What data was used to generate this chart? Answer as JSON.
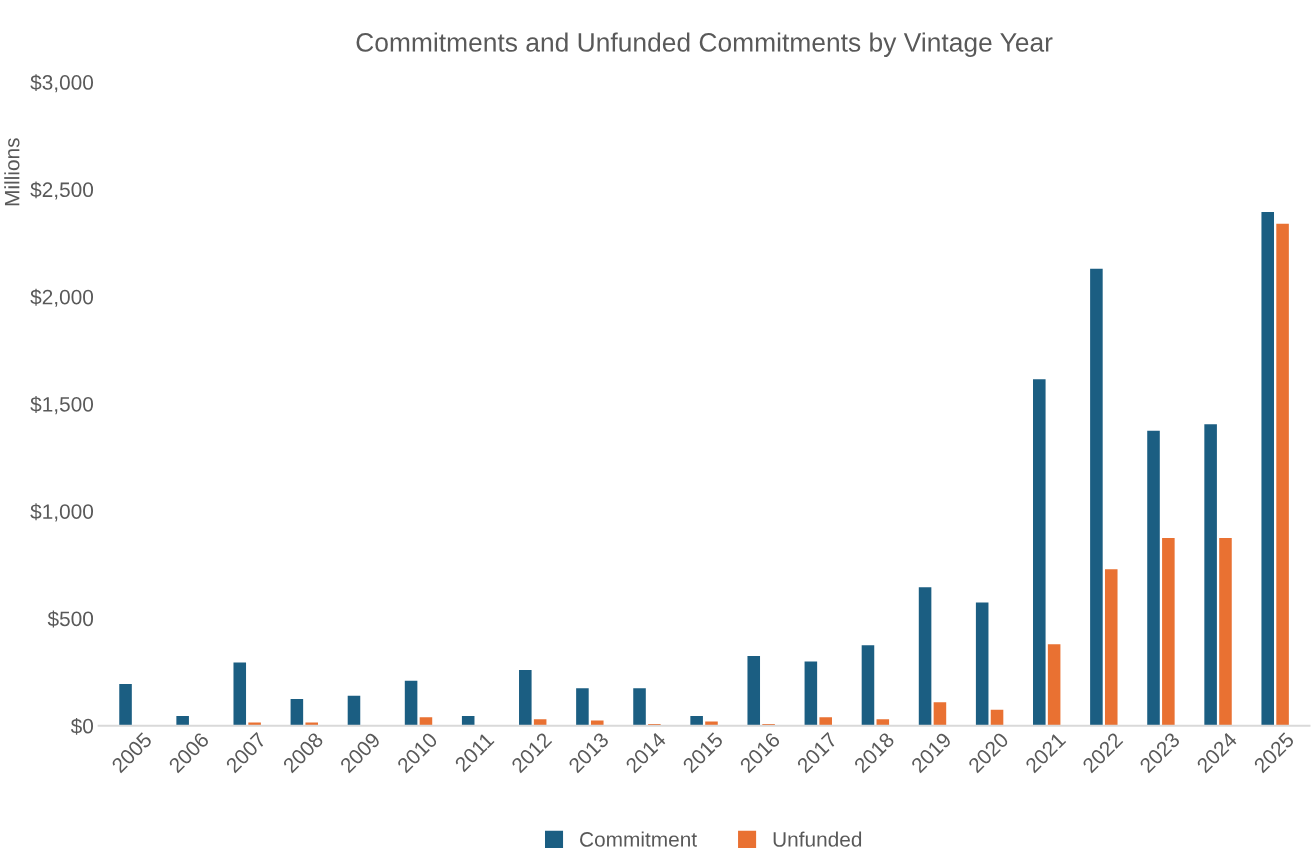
{
  "chart_data": {
    "type": "bar",
    "title": "Commitments and Unfunded Commitments by Vintage Year",
    "ylabel": "Millions",
    "categories": [
      "2005",
      "2006",
      "2007",
      "2008",
      "2009",
      "2010",
      "2011",
      "2012",
      "2013",
      "2014",
      "2015",
      "2016",
      "2017",
      "2018",
      "2019",
      "2020",
      "2021",
      "2022",
      "2023",
      "2024",
      "2025"
    ],
    "series": [
      {
        "name": "Commitment",
        "color": "#1b5e82",
        "values": [
          195,
          45,
          295,
          125,
          140,
          210,
          45,
          260,
          175,
          175,
          45,
          325,
          300,
          375,
          645,
          575,
          1615,
          2130,
          1375,
          1405,
          2395
        ]
      },
      {
        "name": "Unfunded",
        "color": "#e97132",
        "values": [
          null,
          null,
          15,
          15,
          null,
          40,
          null,
          30,
          25,
          8,
          20,
          8,
          40,
          30,
          110,
          75,
          380,
          730,
          875,
          875,
          2340
        ]
      }
    ],
    "ylim": [
      0,
      3000
    ],
    "yticks": [
      {
        "value": 0,
        "label": "$0"
      },
      {
        "value": 500,
        "label": "$500"
      },
      {
        "value": 1000,
        "label": "$1,000"
      },
      {
        "value": 1500,
        "label": "$1,500"
      },
      {
        "value": 2000,
        "label": "$2,000"
      },
      {
        "value": 2500,
        "label": "$2,500"
      },
      {
        "value": 3000,
        "label": "$3,000"
      }
    ],
    "grid": false,
    "legend": "bottom"
  }
}
